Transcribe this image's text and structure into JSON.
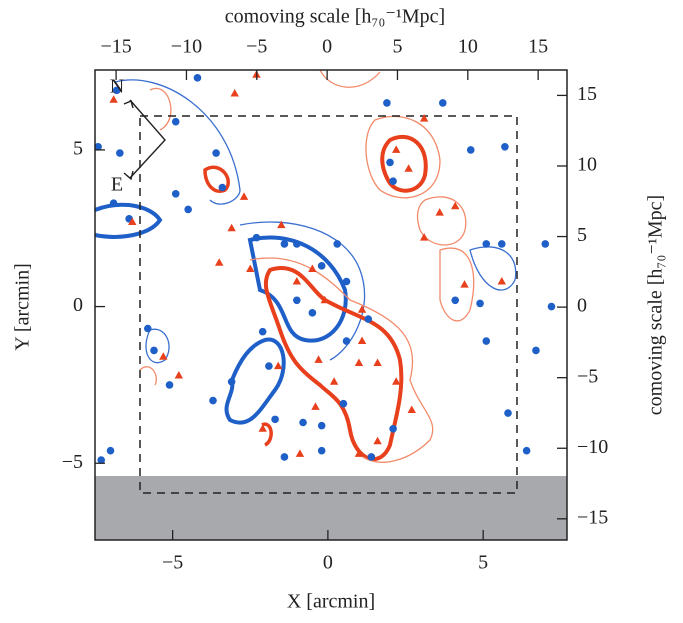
{
  "chart_data": {
    "type": "scatter",
    "xlabel": "X [arcmin]",
    "ylabel": "Y [arcmin]",
    "x2label": "comoving scale [h₇₀⁻¹Mpc]",
    "y2label": "comoving scale [h₇₀⁻¹Mpc]",
    "compass": [
      "N",
      "E"
    ],
    "xlim": [
      -7.5,
      7.7
    ],
    "ylim": [
      -7.45,
      7.55
    ],
    "xticks": [
      {
        "value": -5,
        "label": "−5"
      },
      0,
      5
    ],
    "yticks": [
      {
        "value": -5,
        "label": "−5"
      },
      0,
      5
    ],
    "x2lim": [
      -16.5,
      17.05
    ],
    "x2ticks": [
      {
        "value": -15,
        "label": "−15"
      },
      {
        "value": -10,
        "label": "−10"
      },
      {
        "value": -5,
        "label": "−5"
      },
      0,
      5,
      10,
      15
    ],
    "y2lim": [
      -16.5,
      16.8
    ],
    "y2ticks": [
      {
        "value": -15,
        "label": "−15"
      },
      {
        "value": -10,
        "label": "−10"
      },
      {
        "value": -5,
        "label": "−5"
      },
      0,
      5,
      10,
      15
    ],
    "series": [
      {
        "color": "#1f5fc8",
        "marker": "circle",
        "x": [
          -7.4,
          -6.7,
          -4.9,
          -4.5,
          -6.9,
          -6.4,
          -3.6,
          -3.4,
          -2.3,
          -1.4,
          -1.0,
          -0.2,
          0.3,
          0.6,
          -1.0,
          -0.5,
          0.6,
          -2.1,
          -1.9,
          -3.1,
          -3.7,
          -1.7,
          -0.8,
          -0.2,
          0.5,
          -1.4,
          -0.2,
          1.4,
          2.1,
          2.1,
          2.0,
          1.9,
          3.7,
          4.6,
          5.7,
          5.1,
          5.6,
          4.1,
          4.9,
          5.1,
          5.8,
          7.0,
          7.2,
          6.7,
          -7.0,
          -7.3,
          -5.6,
          -5.8,
          -5.1,
          6.4,
          1.3,
          -6.8,
          -4.9,
          -4.2
        ],
        "y": [
          5.1,
          4.9,
          3.6,
          3.1,
          3.3,
          2.8,
          4.9,
          3.8,
          2.2,
          2.0,
          2.0,
          1.3,
          2.0,
          0.8,
          0.2,
          -0.2,
          -1.1,
          -0.8,
          -1.9,
          -2.4,
          -3.0,
          -3.6,
          -3.7,
          -3.8,
          -3.1,
          -4.8,
          -4.6,
          -4.8,
          -3.9,
          4.0,
          4.6,
          6.5,
          6.5,
          5.0,
          5.1,
          2.0,
          2.0,
          0.2,
          0.1,
          -1.1,
          -3.4,
          2.0,
          0.0,
          -1.4,
          -4.6,
          -4.9,
          -1.4,
          -0.7,
          -2.5,
          -4.6,
          -0.4,
          6.9,
          5.9,
          7.3
        ]
      },
      {
        "color": "#e8401c",
        "marker": "triangle",
        "x": [
          -6.9,
          -2.3,
          -3.0,
          -3.1,
          -3.5,
          -2.5,
          -1.5,
          -1.0,
          -0.5,
          -0.1,
          1.1,
          1.1,
          1.6,
          2.2,
          2.7,
          0.2,
          1.0,
          2.2,
          2.6,
          3.1,
          3.6,
          4.1,
          4.4,
          5.6,
          3.1,
          -2.7,
          -6.3,
          -4.8,
          -5.3,
          -1.6,
          -0.3,
          -0.9,
          -2.1,
          1.0,
          -0.4,
          1.6
        ],
        "y": [
          6.6,
          7.4,
          6.8,
          2.5,
          1.4,
          1.2,
          2.6,
          0.8,
          1.2,
          0.2,
          -0.1,
          -1.1,
          -1.8,
          -2.4,
          -3.3,
          -2.4,
          -1.8,
          5.0,
          4.4,
          2.2,
          3.0,
          3.2,
          0.7,
          0.8,
          6.0,
          3.5,
          2.7,
          -2.2,
          -1.6,
          -1.9,
          -1.7,
          -4.7,
          -3.9,
          -4.7,
          -3.2,
          -4.3
        ]
      }
    ]
  }
}
